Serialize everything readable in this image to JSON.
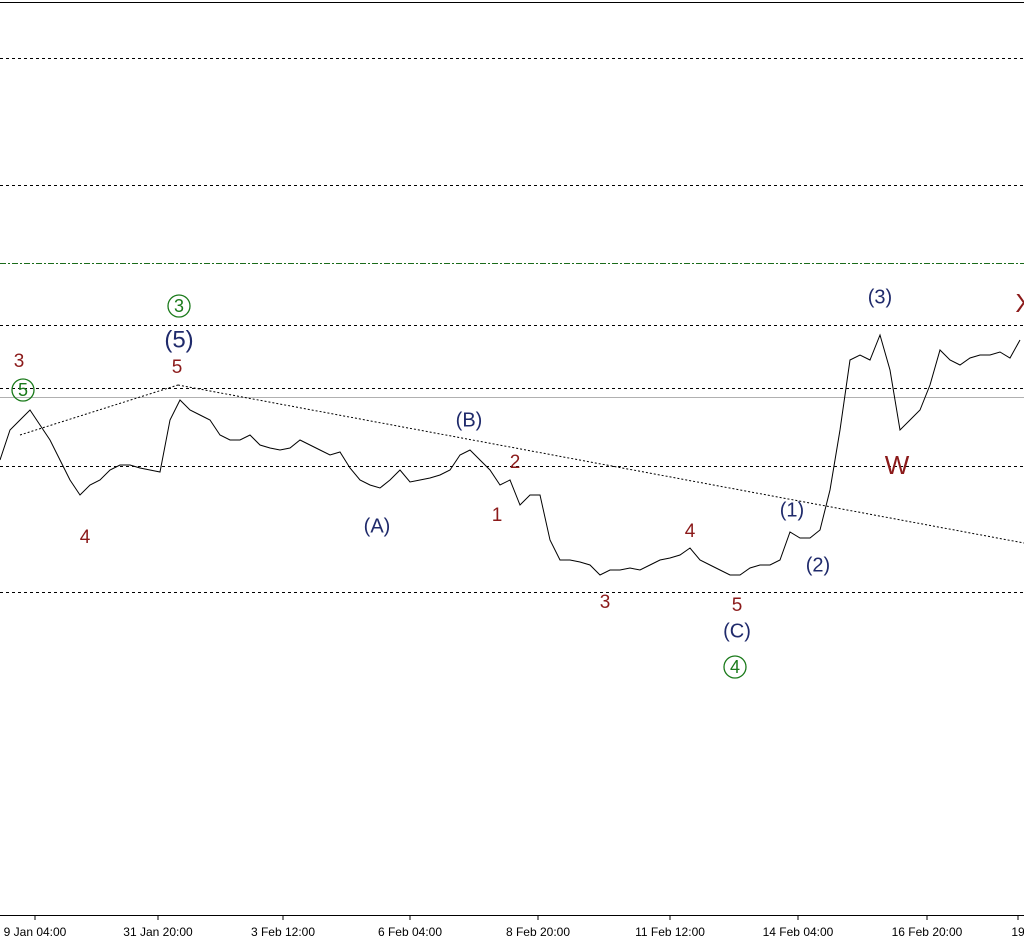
{
  "chart_data": {
    "type": "line",
    "xlim": [
      0,
      102
    ],
    "ylim": [
      0,
      91.5
    ],
    "line_color": "#000000",
    "xticks": [
      {
        "value": 3.5,
        "label": "9 Jan 04:00"
      },
      {
        "value": 15.8,
        "label": "31 Jan 20:00"
      },
      {
        "value": 28.3,
        "label": "3 Feb 12:00"
      },
      {
        "value": 41,
        "label": "6 Feb 04:00"
      },
      {
        "value": 53.8,
        "label": "8 Feb 20:00"
      },
      {
        "value": 67,
        "label": "11 Feb 12:00"
      },
      {
        "value": 79.8,
        "label": "14 Feb 04:00"
      },
      {
        "value": 92.7,
        "label": "16 Feb 20:00"
      },
      {
        "value": 101.8,
        "label": "19"
      }
    ],
    "series": [
      {
        "values": [
          45.5,
          48.5,
          49.5,
          50.5,
          49,
          47.5,
          45.5,
          43.5,
          42,
          43,
          43.5,
          44.5,
          45,
          45,
          44.7,
          44.5,
          44.3,
          49.5,
          51.5,
          50.5,
          50,
          49.5,
          48,
          47.5,
          47.5,
          48,
          47,
          46.7,
          46.5,
          46.7,
          47.5,
          47,
          46.5,
          46,
          46.3,
          44.7,
          43.5,
          43,
          42.7,
          43.5,
          44.5,
          43.3,
          43.5,
          43.7,
          44,
          44.5,
          46,
          46.5,
          45.5,
          44.5,
          43,
          43.5,
          41,
          42,
          42,
          37.5,
          35.5,
          35.5,
          35.3,
          35,
          34,
          34.5,
          34.5,
          34.7,
          34.5,
          35,
          35.5,
          35.7,
          36,
          36.7,
          35.5,
          35,
          34.5,
          34,
          34,
          34.7,
          35,
          35,
          35.5,
          38.3,
          37.7,
          37.7,
          38.5,
          42.5,
          48.5,
          55.5,
          56,
          55.5,
          58,
          54.5,
          48.5,
          49.5,
          50.5,
          53,
          56.5,
          55.5,
          55,
          55.7,
          56,
          56,
          56.3,
          55.7,
          57.5
        ]
      }
    ],
    "levels": [
      {
        "value": 85.7,
        "style": "dashed",
        "color": "#000000"
      },
      {
        "value": 73,
        "style": "dashed",
        "color": "#000000"
      },
      {
        "value": 65.2,
        "style": "dashdot",
        "color": "#1a6b1a"
      },
      {
        "value": 59,
        "style": "dashed",
        "color": "#000000"
      },
      {
        "value": 52.7,
        "style": "dashed",
        "color": "#000000"
      },
      {
        "value": 51.8,
        "style": "solid",
        "color": "#b0b0b0"
      },
      {
        "value": 44.9,
        "style": "dashed",
        "color": "#000000"
      },
      {
        "value": 32.3,
        "style": "dashed",
        "color": "#000000"
      }
    ],
    "trendlines": [
      {
        "x": [
          2,
          17.8
        ],
        "y": [
          48,
          53
        ]
      },
      {
        "x": [
          17.8,
          102.4
        ],
        "y": [
          53,
          37.2
        ]
      }
    ],
    "annotations": [
      {
        "text": "3",
        "color": "#8b1a1a",
        "circled": false
      },
      {
        "text": "5",
        "color": "#1a7a1a",
        "circled": true
      },
      {
        "text": "4",
        "color": "#8b1a1a",
        "circled": false
      },
      {
        "text": "3",
        "color": "#1a7a1a",
        "circled": true
      },
      {
        "text": "(5)",
        "color": "#1f2a6b",
        "circled": false
      },
      {
        "text": "5",
        "color": "#8b1a1a",
        "circled": false
      },
      {
        "text": "(A)",
        "color": "#1f2a6b",
        "circled": false
      },
      {
        "text": "(B)",
        "color": "#1f2a6b",
        "circled": false
      },
      {
        "text": "2",
        "color": "#8b1a1a",
        "circled": false
      },
      {
        "text": "1",
        "color": "#8b1a1a",
        "circled": false
      },
      {
        "text": "3",
        "color": "#8b1a1a",
        "circled": false
      },
      {
        "text": "4",
        "color": "#8b1a1a",
        "circled": false
      },
      {
        "text": "5",
        "color": "#8b1a1a",
        "circled": false
      },
      {
        "text": "(C)",
        "color": "#1f2a6b",
        "circled": false
      },
      {
        "text": "4",
        "color": "#1a7a1a",
        "circled": true
      },
      {
        "text": "(1)",
        "color": "#1f2a6b",
        "circled": false
      },
      {
        "text": "(2)",
        "color": "#1f2a6b",
        "circled": false
      },
      {
        "text": "(3)",
        "color": "#1f2a6b",
        "circled": false
      },
      {
        "text": "W",
        "color": "#8b1a1a",
        "circled": false
      },
      {
        "text": "X",
        "color": "#8b1a1a",
        "circled": false
      }
    ]
  }
}
